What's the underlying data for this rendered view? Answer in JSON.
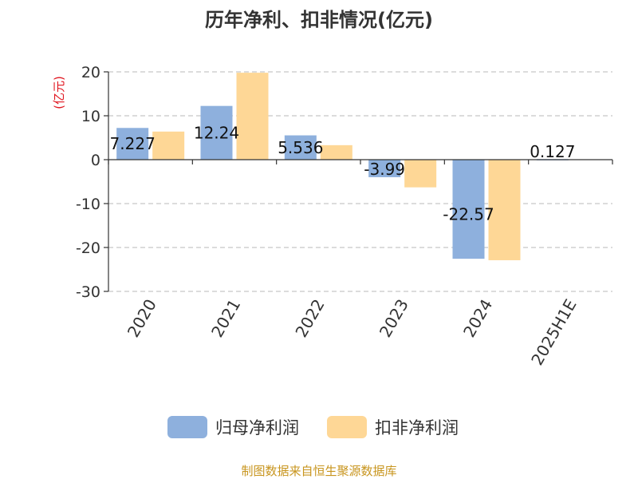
{
  "chart_data": {
    "type": "bar",
    "title": "历年净利、扣非情况(亿元)",
    "unit_label": "(亿元)",
    "categories": [
      "2020",
      "2021",
      "2022",
      "2023",
      "2024",
      "2025H1E"
    ],
    "series": [
      {
        "name": "归母净利润",
        "color": "#8eb0dd",
        "values": [
          7.227,
          12.24,
          5.536,
          -3.99,
          -22.57,
          0.127
        ],
        "labels": [
          "7.227",
          "12.24",
          "5.536",
          "-3.99",
          "-22.57",
          "0.127"
        ]
      },
      {
        "name": "扣非净利润",
        "color": "#fed796",
        "values": [
          6.4,
          19.8,
          3.3,
          -6.3,
          -22.9,
          null
        ],
        "labels": null
      }
    ],
    "ylim": [
      -30,
      20
    ],
    "yticks": [
      20,
      10,
      0,
      -10,
      -20,
      -30
    ],
    "grid": true,
    "legend_position": "bottom"
  },
  "footer": {
    "source": "制图数据来自恒生聚源数据库"
  }
}
